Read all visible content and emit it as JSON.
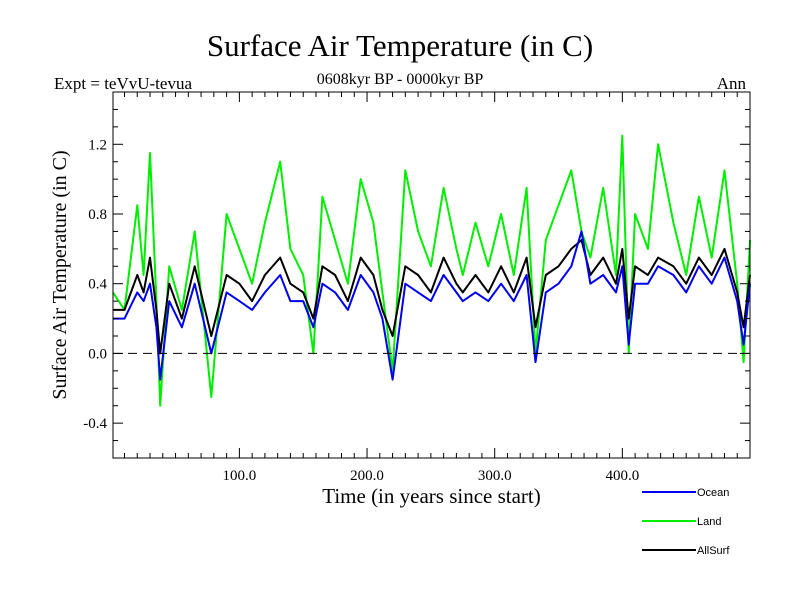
{
  "header": {
    "title": "Surface Air Temperature (in C)",
    "experiment": "Expt = teVvU-tevua",
    "period": "0608kyr BP - 0000kyr BP",
    "season": "Ann"
  },
  "chart_data": {
    "type": "line",
    "title": "Surface Air Temperature (in C)",
    "xlabel": "Time (in years since start)",
    "ylabel": "Surface Air Temperature (in C)",
    "xlim": [
      1,
      500
    ],
    "ylim": [
      -0.6,
      1.5
    ],
    "x_ticks": [
      {
        "value": 100,
        "label": "100.0"
      },
      {
        "value": 200,
        "label": "200.0"
      },
      {
        "value": 300,
        "label": "300.0"
      },
      {
        "value": 400,
        "label": "400.0"
      }
    ],
    "y_ticks": [
      {
        "value": -0.4,
        "label": "-0.4"
      },
      {
        "value": 0.0,
        "label": "0.0"
      },
      {
        "value": 0.4,
        "label": "0.4"
      },
      {
        "value": 0.8,
        "label": "0.8"
      },
      {
        "value": 1.2,
        "label": "1.2"
      }
    ],
    "reference_line": {
      "y": 0.0,
      "style": "dashed"
    },
    "grid": false,
    "legend_position": "bottom-right, outside plot",
    "series": [
      {
        "name": "Land",
        "color": "#00ee00",
        "x": [
          1,
          10,
          20,
          25,
          30,
          35,
          38,
          45,
          55,
          65,
          78,
          90,
          100,
          110,
          120,
          132,
          140,
          150,
          158,
          165,
          175,
          185,
          195,
          205,
          212,
          220,
          230,
          240,
          250,
          260,
          270,
          275,
          285,
          295,
          305,
          315,
          325,
          332,
          340,
          350,
          360,
          368,
          375,
          385,
          395,
          400,
          405,
          410,
          420,
          428,
          440,
          450,
          460,
          470,
          480,
          490,
          495,
          500
        ],
        "y": [
          0.35,
          0.25,
          0.85,
          0.45,
          1.15,
          0.3,
          -0.3,
          0.5,
          0.25,
          0.7,
          -0.25,
          0.8,
          0.6,
          0.4,
          0.75,
          1.1,
          0.6,
          0.45,
          0.0,
          0.9,
          0.65,
          0.4,
          1.0,
          0.75,
          0.35,
          -0.1,
          1.05,
          0.7,
          0.5,
          0.95,
          0.6,
          0.45,
          0.75,
          0.5,
          0.8,
          0.45,
          0.95,
          0.0,
          0.65,
          0.85,
          1.05,
          0.7,
          0.55,
          0.95,
          0.45,
          1.25,
          0.0,
          0.8,
          0.6,
          1.2,
          0.75,
          0.45,
          0.9,
          0.55,
          1.05,
          0.4,
          -0.05,
          0.65
        ]
      },
      {
        "name": "AllSurf",
        "color": "#000000",
        "x": [
          1,
          10,
          20,
          25,
          30,
          35,
          38,
          45,
          55,
          65,
          78,
          90,
          100,
          110,
          120,
          132,
          140,
          150,
          158,
          165,
          175,
          185,
          195,
          205,
          212,
          220,
          230,
          240,
          250,
          260,
          270,
          275,
          285,
          295,
          305,
          315,
          325,
          332,
          340,
          350,
          360,
          368,
          375,
          385,
          395,
          400,
          405,
          410,
          420,
          428,
          440,
          450,
          460,
          470,
          480,
          490,
          495,
          500
        ],
        "y": [
          0.25,
          0.25,
          0.45,
          0.35,
          0.55,
          0.25,
          0.0,
          0.4,
          0.2,
          0.5,
          0.1,
          0.45,
          0.4,
          0.3,
          0.45,
          0.55,
          0.4,
          0.35,
          0.2,
          0.5,
          0.45,
          0.3,
          0.55,
          0.45,
          0.25,
          0.1,
          0.5,
          0.45,
          0.35,
          0.55,
          0.4,
          0.35,
          0.45,
          0.35,
          0.5,
          0.35,
          0.55,
          0.15,
          0.45,
          0.5,
          0.6,
          0.65,
          0.45,
          0.55,
          0.4,
          0.6,
          0.2,
          0.5,
          0.45,
          0.55,
          0.5,
          0.4,
          0.55,
          0.45,
          0.6,
          0.35,
          0.15,
          0.45
        ]
      },
      {
        "name": "Ocean",
        "color": "#0000ee",
        "x": [
          1,
          10,
          20,
          25,
          30,
          35,
          38,
          45,
          55,
          65,
          78,
          90,
          100,
          110,
          120,
          132,
          140,
          150,
          158,
          165,
          175,
          185,
          195,
          205,
          212,
          220,
          230,
          240,
          250,
          260,
          270,
          275,
          285,
          295,
          305,
          315,
          325,
          332,
          340,
          350,
          360,
          368,
          375,
          385,
          395,
          400,
          405,
          410,
          420,
          428,
          440,
          450,
          460,
          470,
          480,
          490,
          495,
          500
        ],
        "y": [
          0.2,
          0.2,
          0.35,
          0.3,
          0.4,
          0.15,
          -0.15,
          0.3,
          0.15,
          0.4,
          0.0,
          0.35,
          0.3,
          0.25,
          0.35,
          0.45,
          0.3,
          0.3,
          0.15,
          0.4,
          0.35,
          0.25,
          0.45,
          0.35,
          0.2,
          -0.15,
          0.4,
          0.35,
          0.3,
          0.45,
          0.35,
          0.3,
          0.35,
          0.3,
          0.4,
          0.3,
          0.45,
          -0.05,
          0.35,
          0.4,
          0.5,
          0.7,
          0.4,
          0.45,
          0.35,
          0.5,
          0.05,
          0.4,
          0.4,
          0.5,
          0.45,
          0.35,
          0.5,
          0.4,
          0.55,
          0.3,
          0.05,
          0.4
        ]
      }
    ],
    "legend": [
      {
        "label": "Ocean",
        "color": "#0000ee"
      },
      {
        "label": "Land",
        "color": "#00ee00"
      },
      {
        "label": "AllSurf",
        "color": "#000000"
      }
    ]
  }
}
